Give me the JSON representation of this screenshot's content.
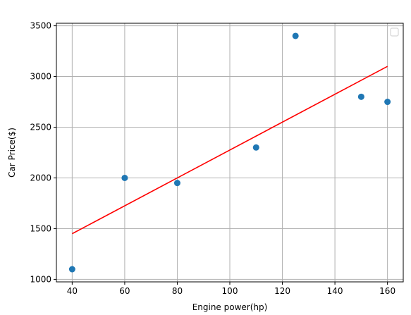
{
  "chart_data": {
    "type": "scatter",
    "title": "",
    "xlabel": "Engine power(hp)",
    "ylabel": "Car Price($)",
    "xlim": [
      34,
      166
    ],
    "ylim": [
      975,
      3525
    ],
    "xticks": [
      40,
      60,
      80,
      100,
      120,
      140,
      160
    ],
    "yticks": [
      1000,
      1500,
      2000,
      2500,
      3000,
      3500
    ],
    "grid": true,
    "legend": "upper-right, empty",
    "series": [
      {
        "type": "scatter",
        "x": [
          40,
          60,
          80,
          110,
          125,
          150,
          160
        ],
        "y": [
          1100,
          2000,
          1950,
          2300,
          3400,
          2800,
          2750
        ],
        "color": "#1f77b4"
      },
      {
        "type": "line",
        "x": [
          40,
          160
        ],
        "y": [
          1450,
          3100
        ],
        "color": "#ff0000"
      }
    ]
  }
}
